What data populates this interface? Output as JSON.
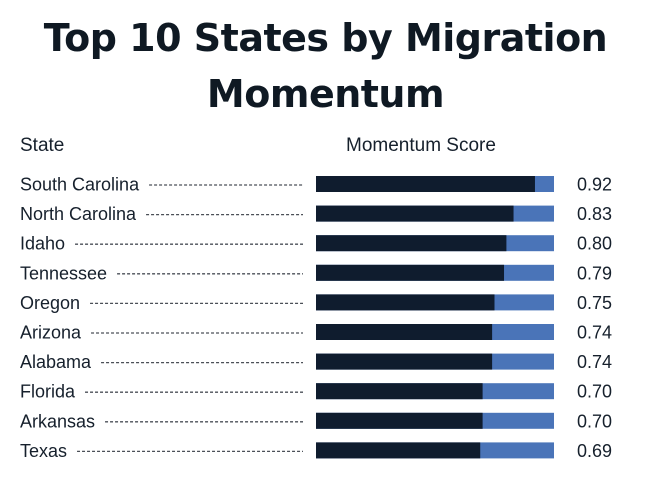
{
  "title": "Top 10 States by Migration Momentum",
  "headers": {
    "state": "State",
    "score": "Momentum Score"
  },
  "colors": {
    "bar_fill": "#0f1c2e",
    "bar_track": "#4a74b8",
    "text": "#16202c"
  },
  "chart_data": {
    "type": "bar",
    "orientation": "horizontal",
    "title": "Top 10 States by Migration Momentum",
    "xlabel": "Momentum Score",
    "ylabel": "State",
    "categories": [
      "South Carolina",
      "North Carolina",
      "Idaho",
      "Tennessee",
      "Oregon",
      "Arizona",
      "Alabama",
      "Florida",
      "Arkansas",
      "Texas"
    ],
    "values": [
      0.92,
      0.83,
      0.8,
      0.79,
      0.75,
      0.74,
      0.74,
      0.7,
      0.7,
      0.69
    ],
    "value_labels": [
      "0.92",
      "0.83",
      "0.80",
      "0.79",
      "0.75",
      "0.74",
      "0.74",
      "0.70",
      "0.70",
      "0.69"
    ],
    "xlim": [
      0,
      1
    ],
    "grid": false,
    "legend": "none"
  }
}
